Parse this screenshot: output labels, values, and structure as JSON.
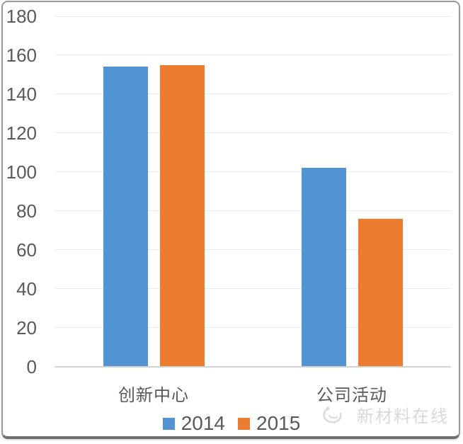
{
  "chart_data": {
    "type": "bar",
    "categories": [
      "创新中心",
      "公司活动"
    ],
    "series": [
      {
        "name": "2014",
        "color": "#5094d1",
        "values": [
          154,
          102
        ]
      },
      {
        "name": "2015",
        "color": "#ec7c30",
        "values": [
          155,
          76
        ]
      }
    ],
    "title": "",
    "xlabel": "",
    "ylabel": "",
    "ylim": [
      0,
      180
    ],
    "yticks": [
      0,
      20,
      40,
      60,
      80,
      100,
      120,
      140,
      160,
      180
    ],
    "grid": true,
    "legend_position": "bottom"
  },
  "colors": {
    "axis_text": "#595959",
    "gridline": "#ebebeb",
    "axis_line": "#d2d2d2",
    "frame_border": "#989898",
    "watermark": "#d9d9d9"
  },
  "watermark": {
    "logo": "swoosh-bird-logo",
    "text": "新材料在线"
  }
}
